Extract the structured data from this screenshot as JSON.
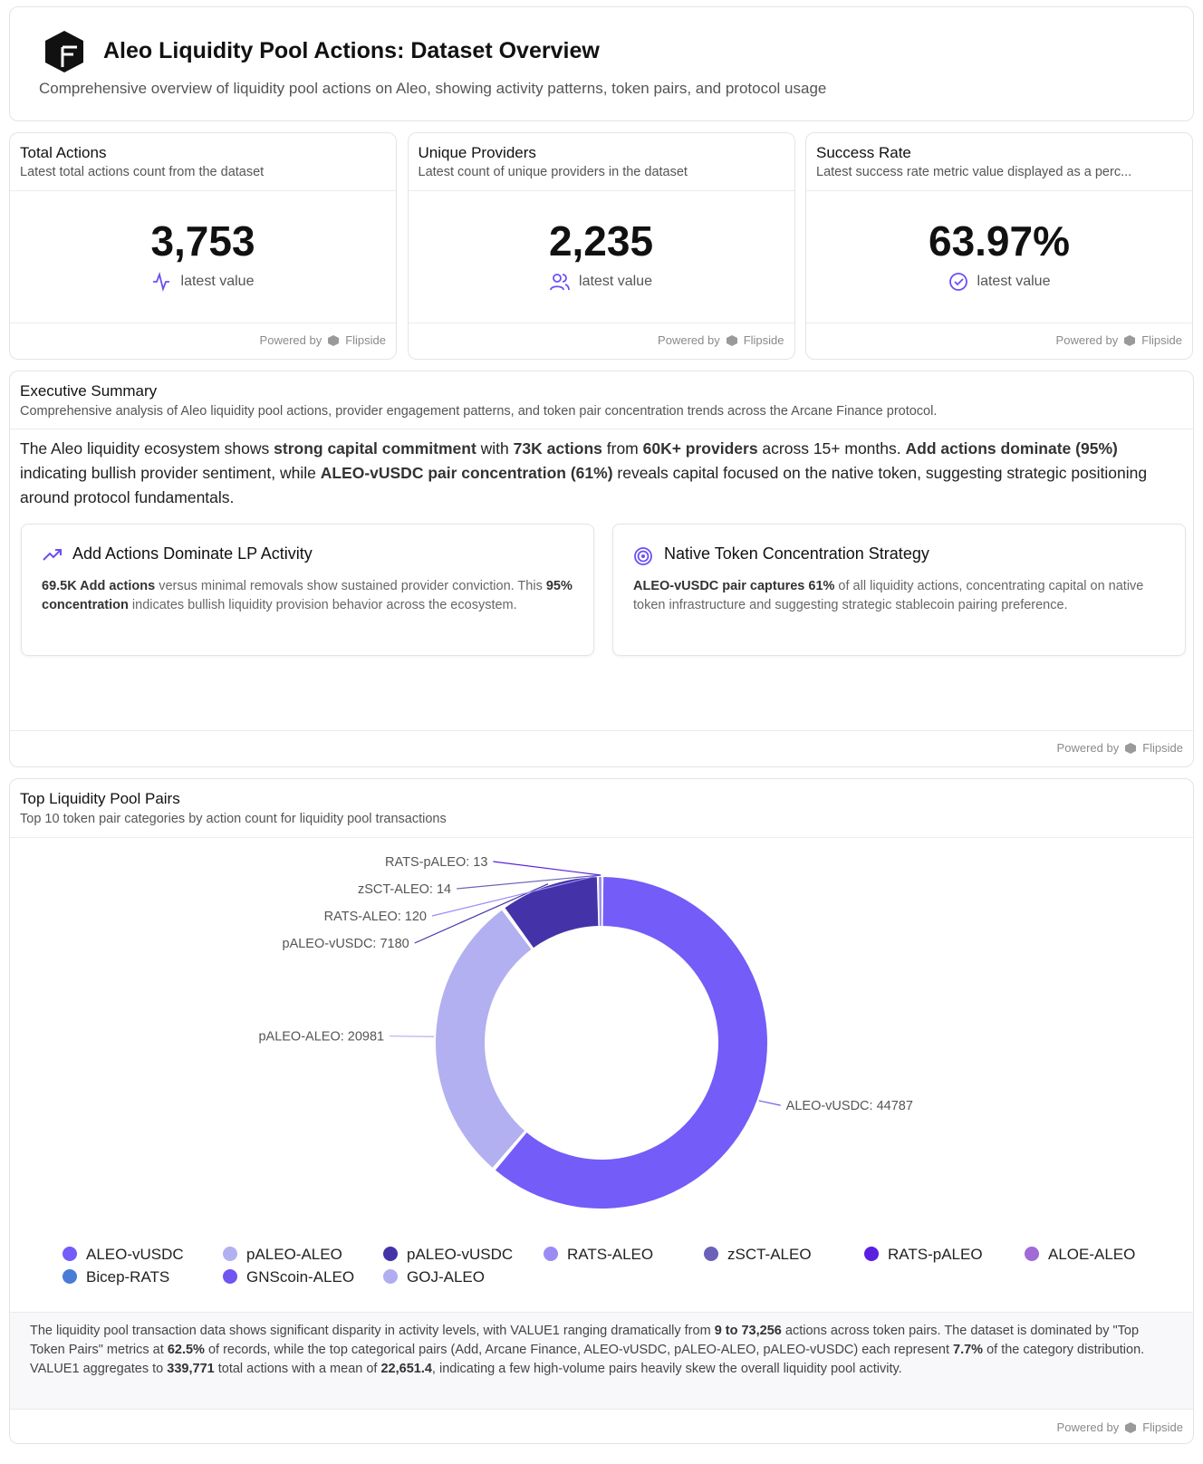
{
  "header": {
    "title": "Aleo Liquidity Pool Actions: Dataset Overview",
    "subtitle": "Comprehensive overview of liquidity pool actions on Aleo, showing activity patterns, token pairs, and protocol usage"
  },
  "kpis": [
    {
      "title": "Total Actions",
      "subtitle": "Latest total actions count from the dataset",
      "value": "3,753",
      "caption": "latest value",
      "powered_by": "Powered by",
      "brand": "Flipside"
    },
    {
      "title": "Unique Providers",
      "subtitle": "Latest count of unique providers in the dataset",
      "value": "2,235",
      "caption": "latest value",
      "powered_by": "Powered by",
      "brand": "Flipside"
    },
    {
      "title": "Success Rate",
      "subtitle": "Latest success rate metric value displayed as a perc...",
      "value": "63.97%",
      "caption": "latest value",
      "powered_by": "Powered by",
      "brand": "Flipside"
    }
  ],
  "summary": {
    "title": "Executive Summary",
    "subtitle": "Comprehensive analysis of Aleo liquidity pool actions, provider engagement patterns, and token pair concentration trends across the Arcane Finance protocol.",
    "paragraph": [
      {
        "text": "The Aleo liquidity ecosystem shows ",
        "bold": false
      },
      {
        "text": "strong capital commitment",
        "bold": true
      },
      {
        "text": " with ",
        "bold": false
      },
      {
        "text": "73K actions",
        "bold": true
      },
      {
        "text": " from ",
        "bold": false
      },
      {
        "text": "60K+ providers",
        "bold": true
      },
      {
        "text": " across 15+ months. ",
        "bold": false
      },
      {
        "text": "Add actions dominate (95%)",
        "bold": true
      },
      {
        "text": " indicating bullish provider sentiment, while ",
        "bold": false
      },
      {
        "text": "ALEO-vUSDC pair concentration (61%)",
        "bold": true
      },
      {
        "text": " reveals capital focused on the native token, suggesting strategic positioning around protocol fundamentals.",
        "bold": false
      }
    ],
    "insights": [
      {
        "title": "Add Actions Dominate LP Activity",
        "body": [
          {
            "text": "69.5K Add actions",
            "bold": true
          },
          {
            "text": " versus minimal removals show sustained provider conviction. This ",
            "bold": false
          },
          {
            "text": "95% concentration",
            "bold": true
          },
          {
            "text": " indicates bullish liquidity provision behavior across the ecosystem.",
            "bold": false
          }
        ]
      },
      {
        "title": "Native Token Concentration Strategy",
        "body": [
          {
            "text": "ALEO-vUSDC pair captures 61%",
            "bold": true
          },
          {
            "text": " of all liquidity actions, concentrating capital on native token infrastructure and suggesting strategic stablecoin pairing preference.",
            "bold": false
          }
        ]
      }
    ],
    "powered_by": "Powered by",
    "brand": "Flipside"
  },
  "chart_section": {
    "title": "Top Liquidity Pool Pairs",
    "subtitle": "Top 10 token pair categories by action count for liquidity pool transactions",
    "note": [
      {
        "text": "The liquidity pool transaction data shows significant disparity in activity levels, with VALUE1 ranging dramatically from ",
        "bold": false
      },
      {
        "text": "9 to 73,256",
        "bold": true
      },
      {
        "text": " actions across token pairs. The dataset is dominated by \"Top Token Pairs\" metrics at ",
        "bold": false
      },
      {
        "text": "62.5%",
        "bold": true
      },
      {
        "text": " of records, while the top categorical pairs (Add, Arcane Finance, ALEO-vUSDC, pALEO-ALEO, pALEO-vUSDC) each represent ",
        "bold": false
      },
      {
        "text": "7.7%",
        "bold": true
      },
      {
        "text": " of the category distribution. VALUE1 aggregates to ",
        "bold": false
      },
      {
        "text": "339,771",
        "bold": true
      },
      {
        "text": " total actions with a mean of ",
        "bold": false
      },
      {
        "text": "22,651.4",
        "bold": true
      },
      {
        "text": ", indicating a few high-volume pairs heavily skew the overall liquidity pool activity.",
        "bold": false
      }
    ],
    "powered_by": "Powered by",
    "brand": "Flipside"
  },
  "chart_data": {
    "type": "donut",
    "categories": [
      "ALEO-vUSDC",
      "pALEO-ALEO",
      "pALEO-vUSDC",
      "RATS-ALEO",
      "zSCT-ALEO",
      "RATS-pALEO",
      "ALOE-ALEO",
      "Bicep-RATS",
      "GNScoin-ALEO",
      "GOJ-ALEO"
    ],
    "values": [
      44787,
      20981,
      7180,
      120,
      14,
      13,
      12,
      11,
      10,
      9
    ],
    "value_labels": [
      "ALEO-vUSDC: 44787",
      "pALEO-ALEO: 20981",
      "pALEO-vUSDC: 7180",
      "RATS-ALEO: 120",
      "zSCT-ALEO: 14",
      "RATS-pALEO: 13",
      null,
      null,
      null,
      null
    ],
    "colors": [
      "#735cf8",
      "#b2b0f0",
      "#4433a8",
      "#9b8cf5",
      "#6a62b8",
      "#5a1fe0",
      "#a06bd6",
      "#4a7bd6",
      "#7055f0",
      "#b0aef0"
    ],
    "legend": "bottom"
  }
}
